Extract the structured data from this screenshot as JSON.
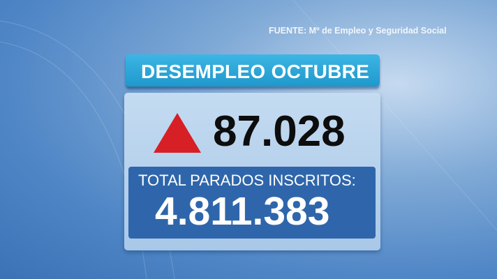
{
  "source": "FUENTE: Mº de Empleo y Seguridad Social",
  "title": "DESEMPLEO OCTUBRE",
  "change": {
    "value": "87.028",
    "direction_icon": "up-triangle-icon",
    "color": "#d71f26"
  },
  "total": {
    "label": "TOTAL PARADOS INSCRITOS:",
    "value": "4.811.383"
  },
  "colors": {
    "title_bar": "#2aa6d6",
    "card": "#b7d2ec",
    "total_box": "#2f66ab"
  }
}
